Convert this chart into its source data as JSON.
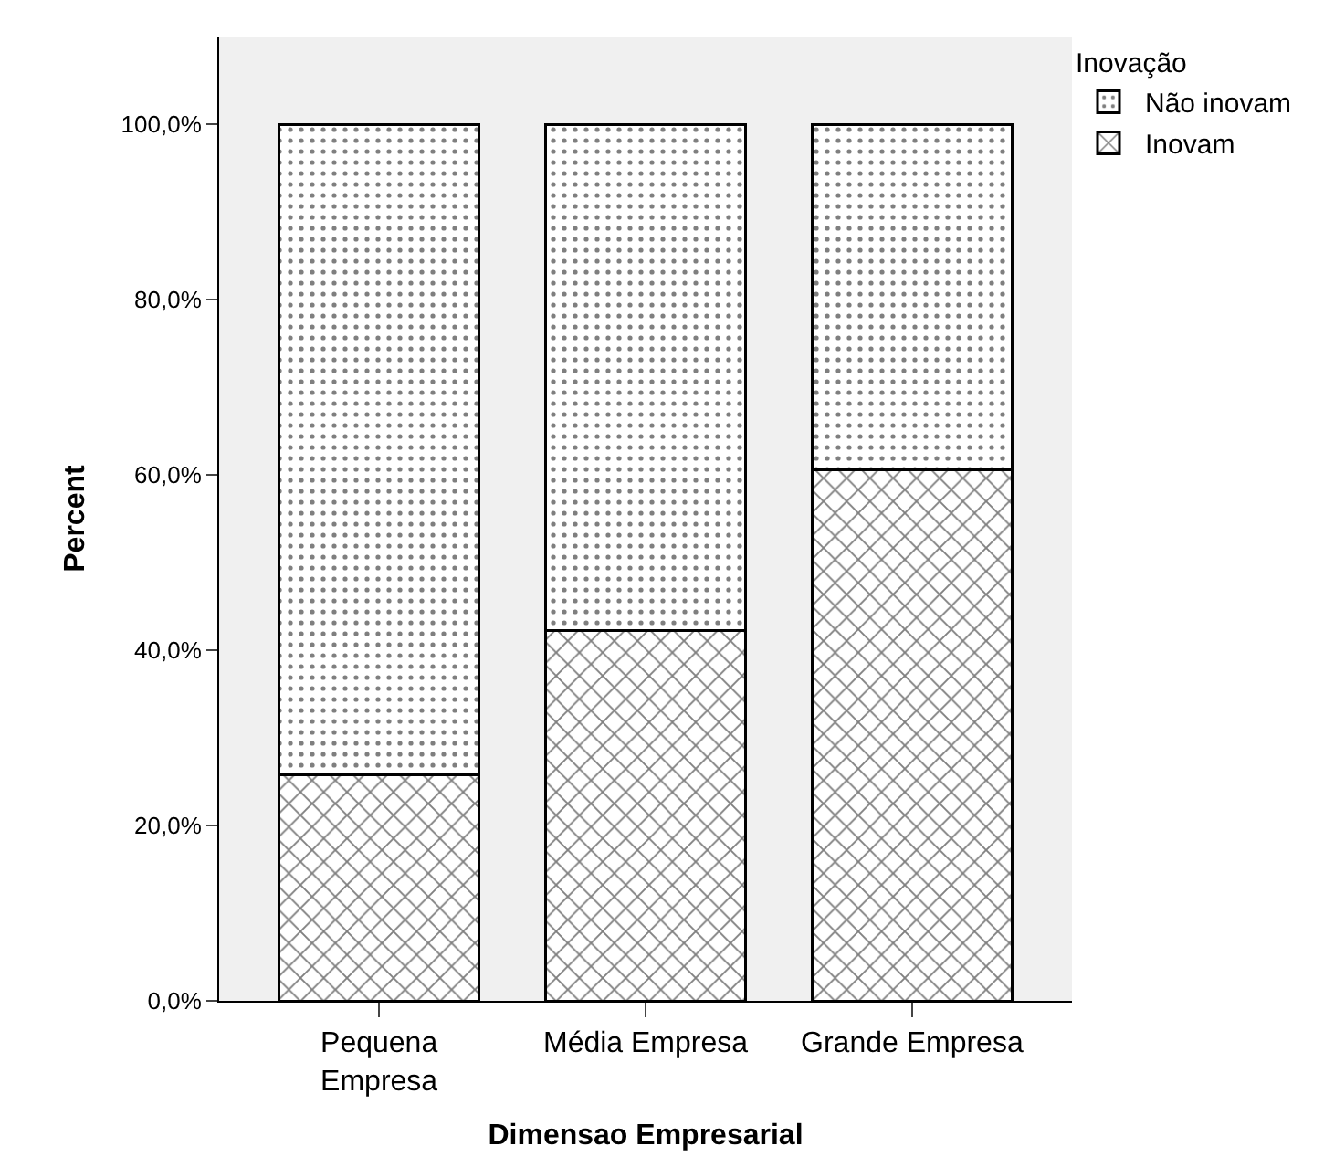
{
  "chart_data": {
    "type": "bar",
    "stacked": true,
    "xlabel": "Dimensao Empresarial",
    "ylabel": "Percent",
    "legend_title": "Inovação",
    "legend": "top right",
    "categories": [
      "Pequena\nEmpresa",
      "Média Empresa",
      "Grande Empresa"
    ],
    "series": [
      {
        "name": "Inovam",
        "color": "#000000",
        "values": [
          25.8,
          42.2,
          60.6
        ]
      },
      {
        "name": "Não inovam",
        "color": "#000000",
        "values": [
          74.2,
          57.8,
          39.4
        ]
      }
    ],
    "ylim": [
      0,
      110
    ],
    "yticks": [
      {
        "value": 0,
        "label": "0,0%"
      },
      {
        "value": 20,
        "label": "20,0%"
      },
      {
        "value": 40,
        "label": "40,0%"
      },
      {
        "value": 60,
        "label": "60,0%"
      },
      {
        "value": 80,
        "label": "80,0%"
      },
      {
        "value": 100,
        "label": "100,0%"
      }
    ],
    "grid": false
  }
}
